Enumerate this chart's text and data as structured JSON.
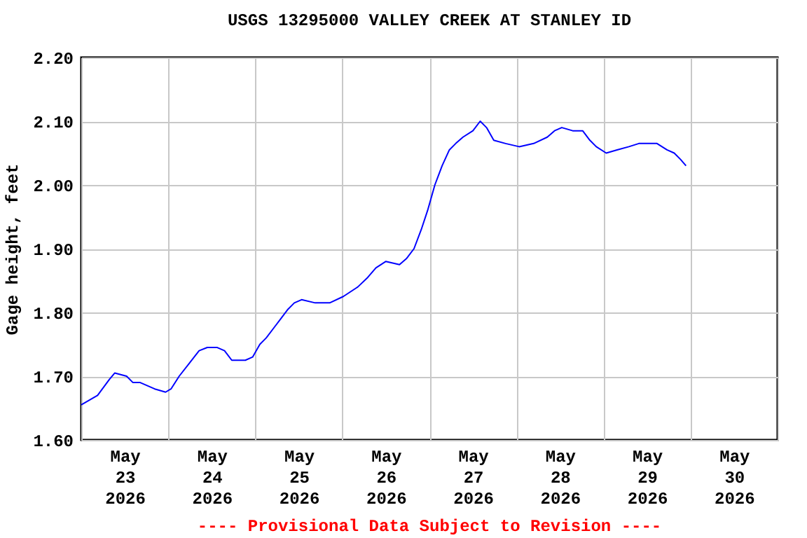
{
  "chart_data": {
    "type": "line",
    "title": "USGS 13295000 VALLEY CREEK AT STANLEY ID",
    "ylabel": "Gage height, feet",
    "annotations": [
      "---- Provisional Data Subject to Revision ----"
    ],
    "x": [
      "2026-05-23T00:00",
      "2026-05-23T01:30",
      "2026-05-23T04:30",
      "2026-05-23T07:45",
      "2026-05-23T09:15",
      "2026-05-23T12:30",
      "2026-05-23T14:15",
      "2026-05-23T16:15",
      "2026-05-23T20:15",
      "2026-05-23T23:15",
      "2026-05-24T00:45",
      "2026-05-24T03:00",
      "2026-05-24T05:45",
      "2026-05-24T08:30",
      "2026-05-24T10:45",
      "2026-05-24T13:30",
      "2026-05-24T15:30",
      "2026-05-24T17:30",
      "2026-05-24T21:15",
      "2026-05-24T23:15",
      "2026-05-25T01:15",
      "2026-05-25T03:00",
      "2026-05-25T05:00",
      "2026-05-25T07:00",
      "2026-05-25T09:00",
      "2026-05-25T10:45",
      "2026-05-25T12:45",
      "2026-05-25T16:30",
      "2026-05-25T20:30",
      "2026-05-26T00:15",
      "2026-05-26T04:15",
      "2026-05-26T07:00",
      "2026-05-26T09:15",
      "2026-05-26T12:00",
      "2026-05-26T15:45",
      "2026-05-26T17:45",
      "2026-05-26T19:45",
      "2026-05-26T21:45",
      "2026-05-26T23:30",
      "2026-05-27T01:30",
      "2026-05-27T03:30",
      "2026-05-27T05:30",
      "2026-05-27T07:15",
      "2026-05-27T09:15",
      "2026-05-27T12:00",
      "2026-05-27T14:00",
      "2026-05-27T15:45",
      "2026-05-27T17:45",
      "2026-05-27T21:00",
      "2026-05-28T00:45",
      "2026-05-28T04:45",
      "2026-05-28T08:30",
      "2026-05-28T10:30",
      "2026-05-28T12:30",
      "2026-05-28T15:30",
      "2026-05-28T18:15",
      "2026-05-28T20:15",
      "2026-05-28T22:00",
      "2026-05-29T00:45",
      "2026-05-29T03:45",
      "2026-05-29T07:00",
      "2026-05-29T09:45",
      "2026-05-29T12:30",
      "2026-05-29T14:45",
      "2026-05-29T17:30",
      "2026-05-29T19:30",
      "2026-05-29T21:15",
      "2026-05-29T22:45"
    ],
    "series": [
      {
        "color": "#0000ff",
        "values": [
          1.655,
          1.66,
          1.67,
          1.695,
          1.705,
          1.7,
          1.69,
          1.69,
          1.68,
          1.675,
          1.68,
          1.7,
          1.72,
          1.74,
          1.745,
          1.745,
          1.74,
          1.725,
          1.725,
          1.73,
          1.75,
          1.76,
          1.775,
          1.79,
          1.805,
          1.815,
          1.82,
          1.815,
          1.815,
          1.825,
          1.84,
          1.855,
          1.87,
          1.88,
          1.875,
          1.885,
          1.9,
          1.93,
          1.96,
          2.0,
          2.03,
          2.055,
          2.065,
          2.075,
          2.085,
          2.1,
          2.09,
          2.07,
          2.065,
          2.06,
          2.065,
          2.075,
          2.085,
          2.09,
          2.085,
          2.085,
          2.07,
          2.06,
          2.05,
          2.055,
          2.06,
          2.065,
          2.065,
          2.065,
          2.055,
          2.05,
          2.04,
          2.03
        ]
      }
    ],
    "xlim": [
      "2026-05-23T00:00",
      "2026-05-31T00:00"
    ],
    "xticks": [
      {
        "value": "2026-05-23T00:00",
        "label": null
      },
      {
        "value": "2026-05-23T12:00",
        "label": "May\n23\n2026"
      },
      {
        "value": "2026-05-24T00:00",
        "label": null
      },
      {
        "value": "2026-05-24T12:00",
        "label": "May\n24\n2026"
      },
      {
        "value": "2026-05-25T00:00",
        "label": null
      },
      {
        "value": "2026-05-25T12:00",
        "label": "May\n25\n2026"
      },
      {
        "value": "2026-05-26T00:00",
        "label": null
      },
      {
        "value": "2026-05-26T12:00",
        "label": "May\n26\n2026"
      },
      {
        "value": "2026-05-27T00:00",
        "label": null
      },
      {
        "value": "2026-05-27T12:00",
        "label": "May\n27\n2026"
      },
      {
        "value": "2026-05-28T00:00",
        "label": null
      },
      {
        "value": "2026-05-28T12:00",
        "label": "May\n28\n2026"
      },
      {
        "value": "2026-05-29T00:00",
        "label": null
      },
      {
        "value": "2026-05-29T12:00",
        "label": "May\n29\n2026"
      },
      {
        "value": "2026-05-30T00:00",
        "label": null
      },
      {
        "value": "2026-05-30T12:00",
        "label": "May\n30\n2026"
      },
      {
        "value": "2026-05-31T00:00",
        "label": null
      }
    ],
    "ylim": [
      1.6,
      2.2
    ],
    "yticks": [
      {
        "value": 1.6,
        "label": "1.60"
      },
      {
        "value": 1.7,
        "label": "1.70"
      },
      {
        "value": 1.8,
        "label": "1.80"
      },
      {
        "value": 1.9,
        "label": "1.90"
      },
      {
        "value": 2.0,
        "label": "2.00"
      },
      {
        "value": 2.1,
        "label": "2.10"
      },
      {
        "value": 2.2,
        "label": "2.20"
      }
    ],
    "grid": true
  }
}
